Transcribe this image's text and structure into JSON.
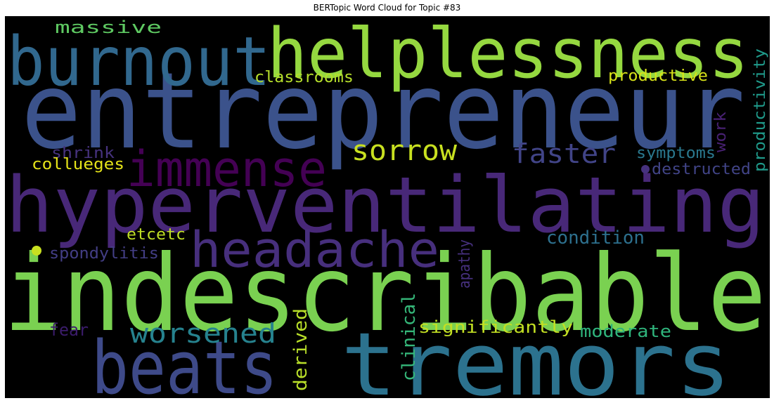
{
  "chart_data": {
    "type": "wordcloud",
    "title": "BERTopic Word Cloud for Topic #83",
    "background": "#000000",
    "words": [
      {
        "text": "entrepreneur",
        "color": "#3b528b"
      },
      {
        "text": "indescribable",
        "color": "#7ad151"
      },
      {
        "text": "helplessness",
        "color": "#95d840"
      },
      {
        "text": "hyperventilating",
        "color": "#482878"
      },
      {
        "text": "tremors",
        "color": "#2c728e"
      },
      {
        "text": "burnout",
        "color": "#31688e"
      },
      {
        "text": "beats",
        "color": "#3e4a89"
      },
      {
        "text": "headache",
        "color": "#472f7d"
      },
      {
        "text": "immense",
        "color": "#440154"
      },
      {
        "text": "sorrow",
        "color": "#c8e020"
      },
      {
        "text": "faster",
        "color": "#414487"
      },
      {
        "text": "worsened",
        "color": "#26828e"
      },
      {
        "text": "massive",
        "color": "#5ec962"
      },
      {
        "text": "classrooms",
        "color": "#b5de2b"
      },
      {
        "text": "productive",
        "color": "#d8e219"
      },
      {
        "text": "productivity",
        "color": "#1f9a8a"
      },
      {
        "text": "symptoms",
        "color": "#2a788e"
      },
      {
        "text": "destructed",
        "color": "#414487"
      },
      {
        "text": "work",
        "color": "#482173"
      },
      {
        "text": "shrink",
        "color": "#46327e"
      },
      {
        "text": "collueges",
        "color": "#e5e419"
      },
      {
        "text": "condition",
        "color": "#2d708e"
      },
      {
        "text": "etcetc",
        "color": "#c0df25"
      },
      {
        "text": "spondylitis",
        "color": "#433e85"
      },
      {
        "text": "apathy",
        "color": "#46307e"
      },
      {
        "text": "clinical",
        "color": "#35b779"
      },
      {
        "text": "significantly",
        "color": "#c2df23"
      },
      {
        "text": "moderate",
        "color": "#2fb47c"
      },
      {
        "text": "derived",
        "color": "#b8de29"
      },
      {
        "text": "fear",
        "color": "#3b1c6b"
      }
    ],
    "dots": [
      {
        "color": "#c8e020"
      },
      {
        "color": "#46327e"
      }
    ]
  }
}
